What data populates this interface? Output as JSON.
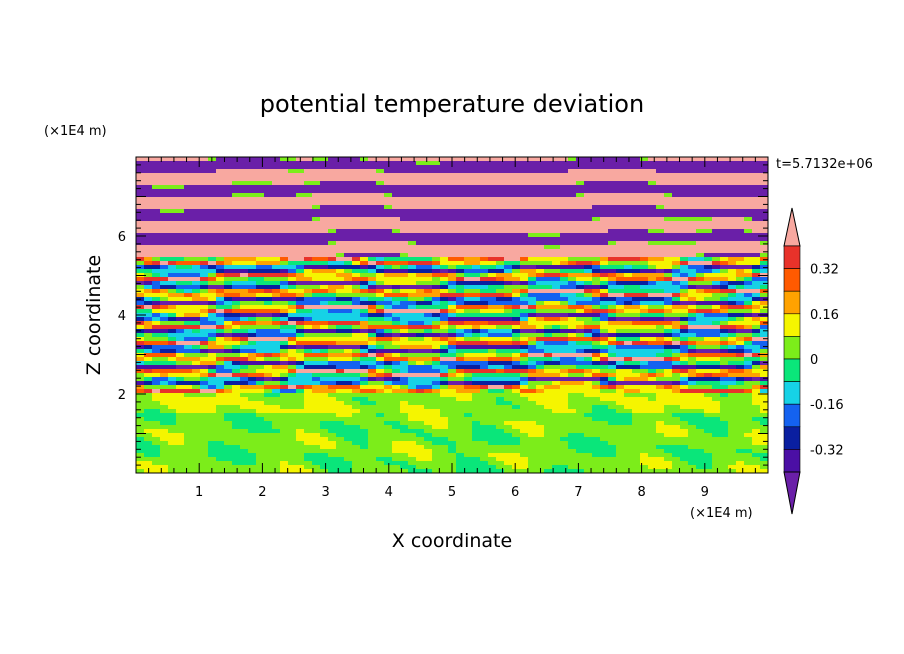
{
  "chart_data": {
    "type": "heatmap",
    "title": "potential temperature deviation",
    "xlabel": "X coordinate",
    "ylabel": "Z coordinate",
    "x_unit": "(×1E4 m)",
    "y_unit": "(×1E4 m)",
    "time_label": "t=5.7132e+06",
    "xlim": [
      0,
      10
    ],
    "ylim": [
      0,
      8
    ],
    "x_ticks": [
      1,
      2,
      3,
      4,
      5,
      6,
      7,
      8,
      9
    ],
    "y_ticks": [
      2,
      4,
      6
    ],
    "colorbar": {
      "levels": [
        -0.4,
        -0.32,
        -0.24,
        -0.16,
        -0.08,
        0,
        0.08,
        0.16,
        0.24,
        0.32,
        0.4
      ],
      "labels": [
        "0.32",
        "0.16",
        "0",
        "-0.16",
        "-0.32"
      ],
      "label_values": [
        0.32,
        0.16,
        0,
        -0.16,
        -0.32
      ],
      "colors_low_to_high": [
        "#6a1fa8",
        "#4b0fa5",
        "#0a1fa0",
        "#1462f0",
        "#16d2e6",
        "#0ae67a",
        "#7ced1a",
        "#f5f500",
        "#ffa200",
        "#ff5a00",
        "#e8322a",
        "#f8a8a0"
      ],
      "extend": "both"
    },
    "description_regions": {
      "upper_layer_z": [
        5.5,
        8
      ],
      "upper_pattern": "alternating warm (pink) and cold (purple) horizontal bands",
      "middle_layer_z": [
        2,
        5.5
      ],
      "middle_pattern": "thin multicolor striations",
      "lower_layer_z": [
        0,
        2
      ],
      "lower_pattern": "near-zero green values with light-green eddies"
    }
  }
}
